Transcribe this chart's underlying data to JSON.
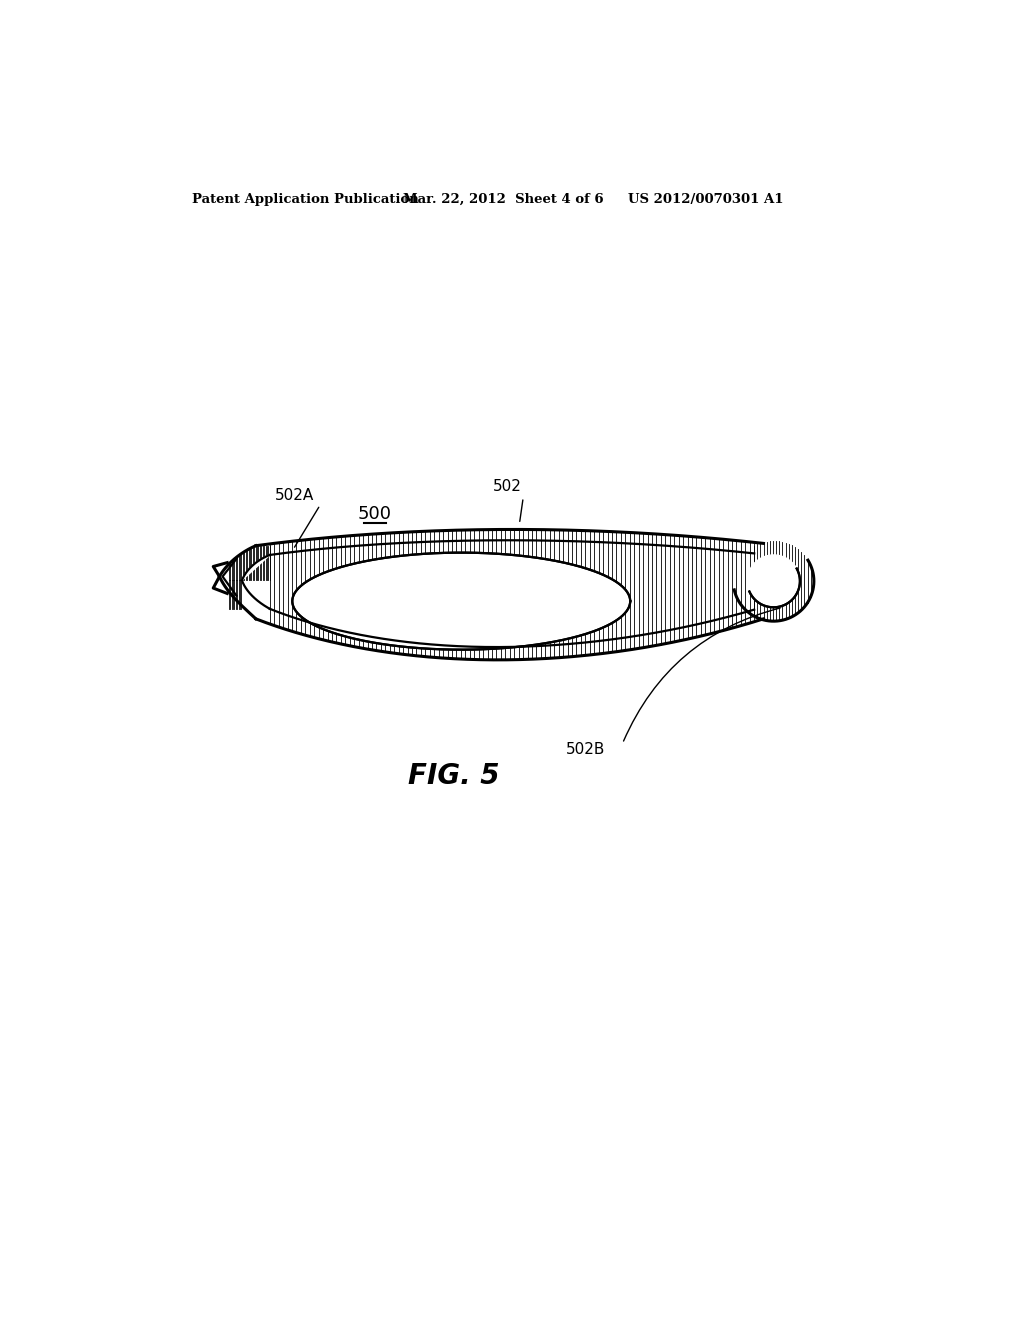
{
  "bg_color": "#ffffff",
  "text_color": "#000000",
  "header_left": "Patent Application Publication",
  "header_center": "Mar. 22, 2012  Sheet 4 of 6",
  "header_right": "US 2012/0070301 A1",
  "fig_label": "FIG. 5",
  "label_500": "500",
  "label_502": "502",
  "label_502A": "502A",
  "label_502B": "502B",
  "line_color": "#000000",
  "hatch_color": "#000000"
}
